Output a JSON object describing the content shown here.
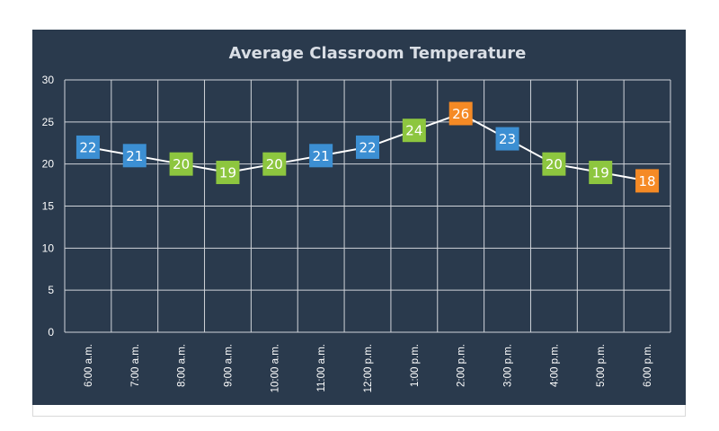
{
  "colors": {
    "panel_bg": "#2a3a4d",
    "grid": "#d0d4da",
    "line": "#ffffff",
    "blue": "#3c8fd3",
    "green": "#8dc63f",
    "orange": "#f58a25"
  },
  "chart_data": {
    "type": "line",
    "title": "Average Classroom Temperature",
    "categories": [
      "6:00 a.m.",
      "7:00 a.m.",
      "8:00 a.m.",
      "9:00 a.m.",
      "10:00 a.m.",
      "11:00 a.m.",
      "12:00 p.m.",
      "1:00 p.m.",
      "2:00 p.m.",
      "3:00 p.m.",
      "4:00 p.m.",
      "5:00 p.m.",
      "6:00 p.m."
    ],
    "values": [
      22,
      21,
      20,
      19,
      20,
      21,
      22,
      24,
      26,
      23,
      20,
      19,
      18
    ],
    "marker_colors": [
      "blue",
      "blue",
      "green",
      "green",
      "green",
      "blue",
      "blue",
      "green",
      "orange",
      "blue",
      "green",
      "green",
      "orange"
    ],
    "ylim": [
      0,
      30
    ],
    "yticks": [
      0,
      5,
      10,
      15,
      20,
      25,
      30
    ],
    "grid": true,
    "data_labels": true,
    "legend": "none"
  }
}
